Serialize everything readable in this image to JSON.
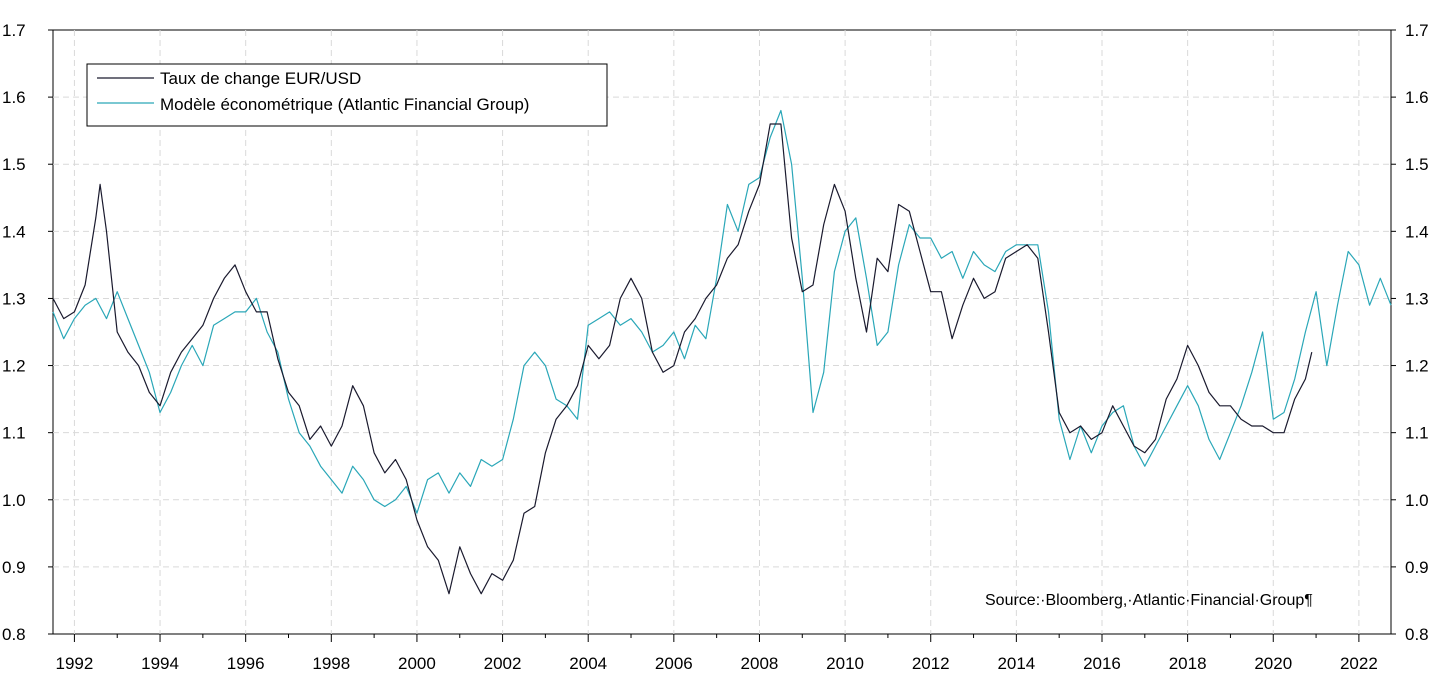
{
  "chart_data": {
    "type": "line",
    "legend_position": "top-left",
    "grid": true,
    "source": "Source:·Bloomberg,·Atlantic·Financial·Group¶",
    "x_range": [
      1991.5,
      2022.75
    ],
    "x_ticks": [
      "1992",
      "1994",
      "1996",
      "1998",
      "2000",
      "2002",
      "2004",
      "2006",
      "2008",
      "2010",
      "2012",
      "2014",
      "2016",
      "2018",
      "2020",
      "2022"
    ],
    "ylim": [
      0.8,
      1.7
    ],
    "y_ticks": [
      "0.8",
      "0.9",
      "1.0",
      "1.1",
      "1.2",
      "1.3",
      "1.4",
      "1.5",
      "1.6",
      "1.7"
    ],
    "series": [
      {
        "name": "Taux de change EUR/USD",
        "color": "#1a1a2e",
        "points": [
          [
            1991.5,
            1.3
          ],
          [
            1991.75,
            1.27
          ],
          [
            1992.0,
            1.28
          ],
          [
            1992.25,
            1.32
          ],
          [
            1992.5,
            1.42
          ],
          [
            1992.6,
            1.47
          ],
          [
            1992.75,
            1.4
          ],
          [
            1993.0,
            1.25
          ],
          [
            1993.25,
            1.22
          ],
          [
            1993.5,
            1.2
          ],
          [
            1993.75,
            1.16
          ],
          [
            1994.0,
            1.14
          ],
          [
            1994.25,
            1.19
          ],
          [
            1994.5,
            1.22
          ],
          [
            1994.75,
            1.24
          ],
          [
            1995.0,
            1.26
          ],
          [
            1995.25,
            1.3
          ],
          [
            1995.5,
            1.33
          ],
          [
            1995.75,
            1.35
          ],
          [
            1996.0,
            1.31
          ],
          [
            1996.25,
            1.28
          ],
          [
            1996.5,
            1.28
          ],
          [
            1996.75,
            1.21
          ],
          [
            1997.0,
            1.16
          ],
          [
            1997.25,
            1.14
          ],
          [
            1997.5,
            1.09
          ],
          [
            1997.75,
            1.11
          ],
          [
            1998.0,
            1.08
          ],
          [
            1998.25,
            1.11
          ],
          [
            1998.5,
            1.17
          ],
          [
            1998.75,
            1.14
          ],
          [
            1999.0,
            1.07
          ],
          [
            1999.25,
            1.04
          ],
          [
            1999.5,
            1.06
          ],
          [
            1999.75,
            1.03
          ],
          [
            2000.0,
            0.97
          ],
          [
            2000.25,
            0.93
          ],
          [
            2000.5,
            0.91
          ],
          [
            2000.75,
            0.86
          ],
          [
            2001.0,
            0.93
          ],
          [
            2001.25,
            0.89
          ],
          [
            2001.5,
            0.86
          ],
          [
            2001.75,
            0.89
          ],
          [
            2002.0,
            0.88
          ],
          [
            2002.25,
            0.91
          ],
          [
            2002.5,
            0.98
          ],
          [
            2002.75,
            0.99
          ],
          [
            2003.0,
            1.07
          ],
          [
            2003.25,
            1.12
          ],
          [
            2003.5,
            1.14
          ],
          [
            2003.75,
            1.17
          ],
          [
            2004.0,
            1.23
          ],
          [
            2004.25,
            1.21
          ],
          [
            2004.5,
            1.23
          ],
          [
            2004.75,
            1.3
          ],
          [
            2005.0,
            1.33
          ],
          [
            2005.25,
            1.3
          ],
          [
            2005.5,
            1.22
          ],
          [
            2005.75,
            1.19
          ],
          [
            2006.0,
            1.2
          ],
          [
            2006.25,
            1.25
          ],
          [
            2006.5,
            1.27
          ],
          [
            2006.75,
            1.3
          ],
          [
            2007.0,
            1.32
          ],
          [
            2007.25,
            1.36
          ],
          [
            2007.5,
            1.38
          ],
          [
            2007.75,
            1.43
          ],
          [
            2008.0,
            1.47
          ],
          [
            2008.25,
            1.56
          ],
          [
            2008.5,
            1.56
          ],
          [
            2008.75,
            1.39
          ],
          [
            2009.0,
            1.31
          ],
          [
            2009.25,
            1.32
          ],
          [
            2009.5,
            1.41
          ],
          [
            2009.75,
            1.47
          ],
          [
            2010.0,
            1.43
          ],
          [
            2010.25,
            1.33
          ],
          [
            2010.5,
            1.25
          ],
          [
            2010.75,
            1.36
          ],
          [
            2011.0,
            1.34
          ],
          [
            2011.25,
            1.44
          ],
          [
            2011.5,
            1.43
          ],
          [
            2011.75,
            1.37
          ],
          [
            2012.0,
            1.31
          ],
          [
            2012.25,
            1.31
          ],
          [
            2012.5,
            1.24
          ],
          [
            2012.75,
            1.29
          ],
          [
            2013.0,
            1.33
          ],
          [
            2013.25,
            1.3
          ],
          [
            2013.5,
            1.31
          ],
          [
            2013.75,
            1.36
          ],
          [
            2014.0,
            1.37
          ],
          [
            2014.25,
            1.38
          ],
          [
            2014.5,
            1.36
          ],
          [
            2014.75,
            1.25
          ],
          [
            2015.0,
            1.13
          ],
          [
            2015.25,
            1.1
          ],
          [
            2015.5,
            1.11
          ],
          [
            2015.75,
            1.09
          ],
          [
            2016.0,
            1.1
          ],
          [
            2016.25,
            1.14
          ],
          [
            2016.5,
            1.11
          ],
          [
            2016.75,
            1.08
          ],
          [
            2017.0,
            1.07
          ],
          [
            2017.25,
            1.09
          ],
          [
            2017.5,
            1.15
          ],
          [
            2017.75,
            1.18
          ],
          [
            2018.0,
            1.23
          ],
          [
            2018.25,
            1.2
          ],
          [
            2018.5,
            1.16
          ],
          [
            2018.75,
            1.14
          ],
          [
            2019.0,
            1.14
          ],
          [
            2019.25,
            1.12
          ],
          [
            2019.5,
            1.11
          ],
          [
            2019.75,
            1.11
          ],
          [
            2020.0,
            1.1
          ],
          [
            2020.25,
            1.1
          ],
          [
            2020.5,
            1.15
          ],
          [
            2020.75,
            1.18
          ],
          [
            2020.9,
            1.22
          ]
        ]
      },
      {
        "name": "Modèle économétrique (Atlantic Financial Group)",
        "color": "#2aa7b8",
        "points": [
          [
            1991.5,
            1.28
          ],
          [
            1991.75,
            1.24
          ],
          [
            1992.0,
            1.27
          ],
          [
            1992.25,
            1.29
          ],
          [
            1992.5,
            1.3
          ],
          [
            1992.75,
            1.27
          ],
          [
            1993.0,
            1.31
          ],
          [
            1993.25,
            1.27
          ],
          [
            1993.5,
            1.23
          ],
          [
            1993.75,
            1.19
          ],
          [
            1994.0,
            1.13
          ],
          [
            1994.25,
            1.16
          ],
          [
            1994.5,
            1.2
          ],
          [
            1994.75,
            1.23
          ],
          [
            1995.0,
            1.2
          ],
          [
            1995.25,
            1.26
          ],
          [
            1995.5,
            1.27
          ],
          [
            1995.75,
            1.28
          ],
          [
            1996.0,
            1.28
          ],
          [
            1996.25,
            1.3
          ],
          [
            1996.5,
            1.25
          ],
          [
            1996.75,
            1.22
          ],
          [
            1997.0,
            1.15
          ],
          [
            1997.25,
            1.1
          ],
          [
            1997.5,
            1.08
          ],
          [
            1997.75,
            1.05
          ],
          [
            1998.0,
            1.03
          ],
          [
            1998.25,
            1.01
          ],
          [
            1998.5,
            1.05
          ],
          [
            1998.75,
            1.03
          ],
          [
            1999.0,
            1.0
          ],
          [
            1999.25,
            0.99
          ],
          [
            1999.5,
            1.0
          ],
          [
            1999.75,
            1.02
          ],
          [
            2000.0,
            0.98
          ],
          [
            2000.25,
            1.03
          ],
          [
            2000.5,
            1.04
          ],
          [
            2000.75,
            1.01
          ],
          [
            2001.0,
            1.04
          ],
          [
            2001.25,
            1.02
          ],
          [
            2001.5,
            1.06
          ],
          [
            2001.75,
            1.05
          ],
          [
            2002.0,
            1.06
          ],
          [
            2002.25,
            1.12
          ],
          [
            2002.5,
            1.2
          ],
          [
            2002.75,
            1.22
          ],
          [
            2003.0,
            1.2
          ],
          [
            2003.25,
            1.15
          ],
          [
            2003.5,
            1.14
          ],
          [
            2003.75,
            1.12
          ],
          [
            2004.0,
            1.26
          ],
          [
            2004.25,
            1.27
          ],
          [
            2004.5,
            1.28
          ],
          [
            2004.75,
            1.26
          ],
          [
            2005.0,
            1.27
          ],
          [
            2005.25,
            1.25
          ],
          [
            2005.5,
            1.22
          ],
          [
            2005.75,
            1.23
          ],
          [
            2006.0,
            1.25
          ],
          [
            2006.25,
            1.21
          ],
          [
            2006.5,
            1.26
          ],
          [
            2006.75,
            1.24
          ],
          [
            2007.0,
            1.33
          ],
          [
            2007.25,
            1.44
          ],
          [
            2007.5,
            1.4
          ],
          [
            2007.75,
            1.47
          ],
          [
            2008.0,
            1.48
          ],
          [
            2008.25,
            1.54
          ],
          [
            2008.5,
            1.58
          ],
          [
            2008.75,
            1.5
          ],
          [
            2009.0,
            1.33
          ],
          [
            2009.25,
            1.13
          ],
          [
            2009.5,
            1.19
          ],
          [
            2009.75,
            1.34
          ],
          [
            2010.0,
            1.4
          ],
          [
            2010.25,
            1.42
          ],
          [
            2010.5,
            1.33
          ],
          [
            2010.75,
            1.23
          ],
          [
            2011.0,
            1.25
          ],
          [
            2011.25,
            1.35
          ],
          [
            2011.5,
            1.41
          ],
          [
            2011.75,
            1.39
          ],
          [
            2012.0,
            1.39
          ],
          [
            2012.25,
            1.36
          ],
          [
            2012.5,
            1.37
          ],
          [
            2012.75,
            1.33
          ],
          [
            2013.0,
            1.37
          ],
          [
            2013.25,
            1.35
          ],
          [
            2013.5,
            1.34
          ],
          [
            2013.75,
            1.37
          ],
          [
            2014.0,
            1.38
          ],
          [
            2014.25,
            1.38
          ],
          [
            2014.5,
            1.38
          ],
          [
            2014.75,
            1.28
          ],
          [
            2015.0,
            1.12
          ],
          [
            2015.25,
            1.06
          ],
          [
            2015.5,
            1.11
          ],
          [
            2015.75,
            1.07
          ],
          [
            2016.0,
            1.11
          ],
          [
            2016.25,
            1.13
          ],
          [
            2016.5,
            1.14
          ],
          [
            2016.75,
            1.08
          ],
          [
            2017.0,
            1.05
          ],
          [
            2017.25,
            1.08
          ],
          [
            2017.5,
            1.11
          ],
          [
            2017.75,
            1.14
          ],
          [
            2018.0,
            1.17
          ],
          [
            2018.25,
            1.14
          ],
          [
            2018.5,
            1.09
          ],
          [
            2018.75,
            1.06
          ],
          [
            2019.0,
            1.1
          ],
          [
            2019.25,
            1.14
          ],
          [
            2019.5,
            1.19
          ],
          [
            2019.75,
            1.25
          ],
          [
            2020.0,
            1.12
          ],
          [
            2020.25,
            1.13
          ],
          [
            2020.5,
            1.18
          ],
          [
            2020.75,
            1.25
          ],
          [
            2021.0,
            1.31
          ],
          [
            2021.25,
            1.2
          ],
          [
            2021.5,
            1.29
          ],
          [
            2021.75,
            1.37
          ],
          [
            2022.0,
            1.35
          ],
          [
            2022.25,
            1.29
          ],
          [
            2022.5,
            1.33
          ],
          [
            2022.75,
            1.29
          ]
        ]
      }
    ]
  }
}
